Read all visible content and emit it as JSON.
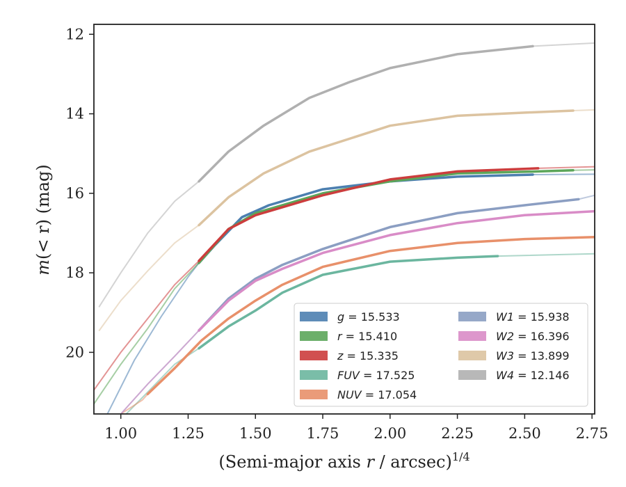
{
  "chart_data": {
    "type": "line",
    "ylabel_parts": {
      "italic": "m",
      "rest": "(< r) (mag)"
    },
    "xlabel_parts": {
      "base": "(Semi-major axis ",
      "italic": "r",
      "rest": " / arcsec)",
      "sup": "1/4"
    },
    "xlim": [
      0.9,
      2.76
    ],
    "ylim": [
      21.55,
      11.75
    ],
    "y_inverted": true,
    "x_ticks": [
      "1.00",
      "1.25",
      "1.50",
      "1.75",
      "2.00",
      "2.25",
      "2.50",
      "2.75"
    ],
    "y_ticks": [
      "12",
      "14",
      "16",
      "18",
      "20"
    ],
    "grid": false,
    "legend_position": "lower-right",
    "series": [
      {
        "key": "g",
        "label": "g = 15.533",
        "color": "#4c7fb0",
        "faint": [
          [
            0.95,
            21.55
          ],
          [
            1.05,
            20.2
          ],
          [
            1.15,
            19.1
          ],
          [
            1.25,
            18.1
          ],
          [
            1.29,
            17.75
          ]
        ],
        "bold": [
          [
            1.29,
            17.75
          ],
          [
            1.35,
            17.3
          ],
          [
            1.45,
            16.6
          ],
          [
            1.55,
            16.3
          ],
          [
            1.75,
            15.9
          ],
          [
            2.0,
            15.7
          ],
          [
            2.25,
            15.58
          ],
          [
            2.53,
            15.53
          ]
        ],
        "tail": [
          [
            2.53,
            15.53
          ],
          [
            2.76,
            15.52
          ]
        ]
      },
      {
        "key": "r",
        "label": "r = 15.410",
        "color": "#5ca65a",
        "faint": [
          [
            0.9,
            21.3
          ],
          [
            1.0,
            20.3
          ],
          [
            1.1,
            19.4
          ],
          [
            1.2,
            18.4
          ],
          [
            1.29,
            17.75
          ]
        ],
        "bold": [
          [
            1.29,
            17.75
          ],
          [
            1.4,
            16.9
          ],
          [
            1.5,
            16.5
          ],
          [
            1.75,
            16.0
          ],
          [
            2.0,
            15.7
          ],
          [
            2.25,
            15.5
          ],
          [
            2.55,
            15.45
          ],
          [
            2.68,
            15.42
          ]
        ],
        "tail": [
          [
            2.68,
            15.42
          ],
          [
            2.76,
            15.41
          ]
        ]
      },
      {
        "key": "z",
        "label": "z = 15.335",
        "color": "#cc3d3d",
        "faint": [
          [
            0.9,
            20.95
          ],
          [
            1.0,
            20.0
          ],
          [
            1.1,
            19.15
          ],
          [
            1.2,
            18.3
          ],
          [
            1.29,
            17.7
          ]
        ],
        "bold": [
          [
            1.29,
            17.7
          ],
          [
            1.4,
            16.9
          ],
          [
            1.5,
            16.55
          ],
          [
            1.75,
            16.05
          ],
          [
            2.0,
            15.65
          ],
          [
            2.25,
            15.45
          ],
          [
            2.55,
            15.37
          ]
        ],
        "tail": [
          [
            2.55,
            15.37
          ],
          [
            2.76,
            15.33
          ]
        ]
      },
      {
        "key": "FUV",
        "label": "FUV = 17.525",
        "color": "#6bb69f",
        "faint": [
          [
            1.02,
            21.55
          ],
          [
            1.1,
            21.0
          ],
          [
            1.2,
            20.3
          ],
          [
            1.29,
            19.9
          ]
        ],
        "bold": [
          [
            1.29,
            19.9
          ],
          [
            1.4,
            19.35
          ],
          [
            1.5,
            18.95
          ],
          [
            1.6,
            18.5
          ],
          [
            1.75,
            18.05
          ],
          [
            2.0,
            17.72
          ],
          [
            2.25,
            17.62
          ],
          [
            2.4,
            17.58
          ]
        ],
        "tail": [
          [
            2.4,
            17.58
          ],
          [
            2.76,
            17.52
          ]
        ]
      },
      {
        "key": "NUV",
        "label": "NUV = 17.054",
        "color": "#e8906a",
        "faint": [
          [
            1.0,
            21.55
          ],
          [
            1.08,
            21.2
          ],
          [
            1.1,
            21.05
          ]
        ],
        "bold": [
          [
            1.1,
            21.05
          ],
          [
            1.2,
            20.4
          ],
          [
            1.3,
            19.7
          ],
          [
            1.4,
            19.15
          ],
          [
            1.5,
            18.7
          ],
          [
            1.6,
            18.3
          ],
          [
            1.75,
            17.85
          ],
          [
            2.0,
            17.45
          ],
          [
            2.25,
            17.25
          ],
          [
            2.5,
            17.15
          ],
          [
            2.76,
            17.1
          ]
        ],
        "tail": []
      },
      {
        "key": "W1",
        "label": "W1 = 15.938",
        "color": "#8b9ec2",
        "faint": [
          [
            1.0,
            21.55
          ],
          [
            1.1,
            20.8
          ],
          [
            1.2,
            20.1
          ],
          [
            1.29,
            19.45
          ]
        ],
        "bold": [
          [
            1.29,
            19.45
          ],
          [
            1.4,
            18.65
          ],
          [
            1.5,
            18.15
          ],
          [
            1.6,
            17.8
          ],
          [
            1.75,
            17.4
          ],
          [
            2.0,
            16.85
          ],
          [
            2.25,
            16.5
          ],
          [
            2.5,
            16.3
          ],
          [
            2.7,
            16.15
          ]
        ],
        "tail": [
          [
            2.7,
            16.15
          ],
          [
            2.76,
            16.05
          ]
        ]
      },
      {
        "key": "W2",
        "label": "W2 = 16.396",
        "color": "#d98cc7",
        "faint": [
          [
            1.0,
            21.55
          ],
          [
            1.1,
            20.8
          ],
          [
            1.2,
            20.1
          ],
          [
            1.29,
            19.45
          ]
        ],
        "bold": [
          [
            1.29,
            19.45
          ],
          [
            1.4,
            18.7
          ],
          [
            1.5,
            18.2
          ],
          [
            1.6,
            17.9
          ],
          [
            1.75,
            17.5
          ],
          [
            2.0,
            17.05
          ],
          [
            2.25,
            16.75
          ],
          [
            2.5,
            16.55
          ],
          [
            2.76,
            16.45
          ]
        ],
        "tail": []
      },
      {
        "key": "W3",
        "label": "W3 = 13.899",
        "color": "#dcc3a0",
        "faint": [
          [
            0.92,
            19.45
          ],
          [
            1.0,
            18.7
          ],
          [
            1.1,
            17.95
          ],
          [
            1.2,
            17.25
          ],
          [
            1.29,
            16.8
          ]
        ],
        "bold": [
          [
            1.29,
            16.8
          ],
          [
            1.4,
            16.1
          ],
          [
            1.53,
            15.5
          ],
          [
            1.7,
            14.95
          ],
          [
            2.0,
            14.3
          ],
          [
            2.25,
            14.05
          ],
          [
            2.5,
            13.97
          ],
          [
            2.68,
            13.92
          ]
        ],
        "tail": [
          [
            2.68,
            13.92
          ],
          [
            2.76,
            13.9
          ]
        ]
      },
      {
        "key": "W4",
        "label": "W4 = 12.146",
        "color": "#b0b0b0",
        "faint": [
          [
            0.92,
            18.85
          ],
          [
            1.0,
            18.0
          ],
          [
            1.1,
            17.0
          ],
          [
            1.2,
            16.2
          ],
          [
            1.29,
            15.7
          ]
        ],
        "bold": [
          [
            1.29,
            15.7
          ],
          [
            1.4,
            14.95
          ],
          [
            1.53,
            14.3
          ],
          [
            1.7,
            13.6
          ],
          [
            1.85,
            13.2
          ],
          [
            2.0,
            12.85
          ],
          [
            2.25,
            12.5
          ],
          [
            2.53,
            12.3
          ]
        ],
        "tail": [
          [
            2.53,
            12.3
          ],
          [
            2.76,
            12.22
          ]
        ]
      }
    ]
  }
}
